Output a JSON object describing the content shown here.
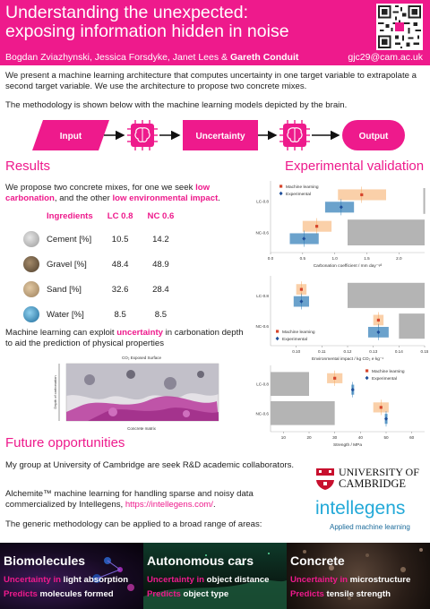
{
  "header": {
    "title_line1": "Understanding the unexpected:",
    "title_line2": "exposing information hidden in noise",
    "authors_plain": "Bogdan Zviazhynski, Jessica Forsdyke, Janet Lees & ",
    "authors_bold": "Gareth Conduit",
    "email": "gjc29@cam.ac.uk"
  },
  "intro": "We present a machine learning architecture that computes uncertainty in one target variable to extrapolate a second target variable. We use the architecture to propose two concrete mixes.",
  "method": "The methodology is shown below with the machine learning models depicted by the brain.",
  "flow": {
    "input": "Input",
    "middle": "Uncertainty",
    "output": "Output"
  },
  "results": {
    "heading": "Results",
    "text_a": "We propose two concrete mixes, for one we seek ",
    "text_b": "low carbonation",
    "text_c": ", and the other ",
    "text_d": "low environmental impact",
    "text_e": ".",
    "table": {
      "headers": [
        "Ingredients",
        "LC 0.8",
        "NC 0.6"
      ],
      "rows": [
        {
          "name": "Cement [%]",
          "lc": "10.5",
          "nc": "14.2"
        },
        {
          "name": "Gravel [%]",
          "lc": "48.4",
          "nc": "48.9"
        },
        {
          "name": "Sand [%]",
          "lc": "32.6",
          "nc": "28.4"
        },
        {
          "name": "Water [%]",
          "lc": "8.5",
          "nc": "8.5"
        }
      ]
    },
    "ml_a": "Machine learning can exploit ",
    "ml_b": "uncertainty",
    "ml_c": " in carbonation depth to aid the prediction of physical properties",
    "fig_top": "CO₂ Exposed Surface",
    "fig_side": "Depth of carbonation",
    "fig_bottom": "Concrete matrix"
  },
  "validation": {
    "heading": "Experimental validation"
  },
  "future": {
    "heading": "Future opportunities",
    "p1": "My group at University of Cambridge are seek R&D academic collaborators.",
    "p2_a": "Alchemite™ machine learning for handling sparse and noisy data commercialized by Intellegens, ",
    "p2_link": "https://intellegens.com/",
    "p2_b": ".",
    "p3": "The generic methodology can be applied to a broad range of areas:"
  },
  "logos": {
    "cam_line1": "UNIVERSITY OF",
    "cam_line2": "CAMBRIDGE",
    "intellegens": "intellegens",
    "intellegens_sub": "Applied machine learning"
  },
  "panels": [
    {
      "title": "Biomolecules",
      "l1k": "Uncertainty in",
      "l1": " light absorption",
      "l2k": "Predicts",
      "l2": " molecules formed"
    },
    {
      "title": "Autonomous cars",
      "l1k": "Uncertainty in",
      "l1": " object distance",
      "l2k": "Predicts",
      "l2": " object type"
    },
    {
      "title": "Concrete",
      "l1k": "Uncertainty in",
      "l1": " microstructure",
      "l2k": "Predicts",
      "l2": " tensile strength"
    }
  ],
  "colors": {
    "accent": "#ee1a8c",
    "ml": "#f5a962",
    "exp": "#2c7bb6"
  },
  "chart_data": [
    {
      "type": "scatter",
      "title": "",
      "xlabel": "Carbonation coefficient / mm day⁻¹⁄²",
      "ylabel": "",
      "xlim": [
        0.0,
        2.4
      ],
      "xticks": [
        "0.0",
        "0.5",
        "1.0",
        "1.5",
        "2.0"
      ],
      "xtick_values": [
        0.0,
        0.5,
        1.0,
        1.5,
        2.0
      ],
      "categories": [
        "LC-0.8",
        "NC-0.6"
      ],
      "legend": [
        "Machine learning",
        "Experimental"
      ],
      "legend_position": "top-left",
      "series": [
        {
          "name": "Machine learning",
          "values": [
            1.42,
            0.72
          ],
          "err_low": [
            1.05,
            0.5
          ],
          "err_high": [
            1.8,
            0.95
          ]
        },
        {
          "name": "Experimental",
          "values": [
            1.1,
            0.52
          ],
          "err_low": [
            0.85,
            0.3
          ],
          "err_high": [
            1.3,
            0.75
          ]
        }
      ],
      "grey_bars": [
        [
          2.38,
          2.4
        ],
        [
          1.2,
          2.4
        ]
      ]
    },
    {
      "type": "scatter",
      "title": "",
      "xlabel": "Environmental impact / kg CO₂ e kg⁻¹",
      "ylabel": "",
      "xlim": [
        0.09,
        0.15
      ],
      "xticks": [
        "0.10",
        "0.11",
        "0.12",
        "0.13",
        "0.14",
        "0.15"
      ],
      "xtick_values": [
        0.1,
        0.11,
        0.12,
        0.13,
        0.14,
        0.15
      ],
      "categories": [
        "LC-0.8",
        "NC-0.6"
      ],
      "legend": [
        "Machine learning",
        "Experimental"
      ],
      "legend_position": "bottom-left",
      "series": [
        {
          "name": "Machine learning",
          "values": [
            0.102,
            0.132
          ],
          "err_low": [
            0.1,
            0.13
          ],
          "err_high": [
            0.104,
            0.134
          ]
        },
        {
          "name": "Experimental",
          "values": [
            0.102,
            0.132
          ],
          "err_low": [
            0.099,
            0.128
          ],
          "err_high": [
            0.105,
            0.136
          ]
        }
      ],
      "grey_bars": [
        [
          0.12,
          0.15
        ],
        [
          0.14,
          0.15
        ]
      ]
    },
    {
      "type": "scatter",
      "title": "",
      "xlabel": "Strength / MPa",
      "ylabel": "",
      "xlim": [
        5,
        65
      ],
      "xticks": [
        "10",
        "20",
        "30",
        "40",
        "50",
        "60"
      ],
      "xtick_values": [
        10,
        20,
        30,
        40,
        50,
        60
      ],
      "categories": [
        "LC-0.8",
        "NC-0.6"
      ],
      "legend": [
        "Machine learning",
        "Experimental"
      ],
      "legend_position": "top-right",
      "series": [
        {
          "name": "Machine learning",
          "values": [
            30,
            48
          ],
          "err_low": [
            27,
            45
          ],
          "err_high": [
            33,
            51
          ]
        },
        {
          "name": "Experimental",
          "values": [
            37,
            50
          ],
          "err_low": [
            36.5,
            49.5
          ],
          "err_high": [
            37.5,
            50.5
          ]
        }
      ],
      "grey_bars": [
        [
          5,
          20
        ],
        [
          5,
          30
        ]
      ]
    }
  ]
}
